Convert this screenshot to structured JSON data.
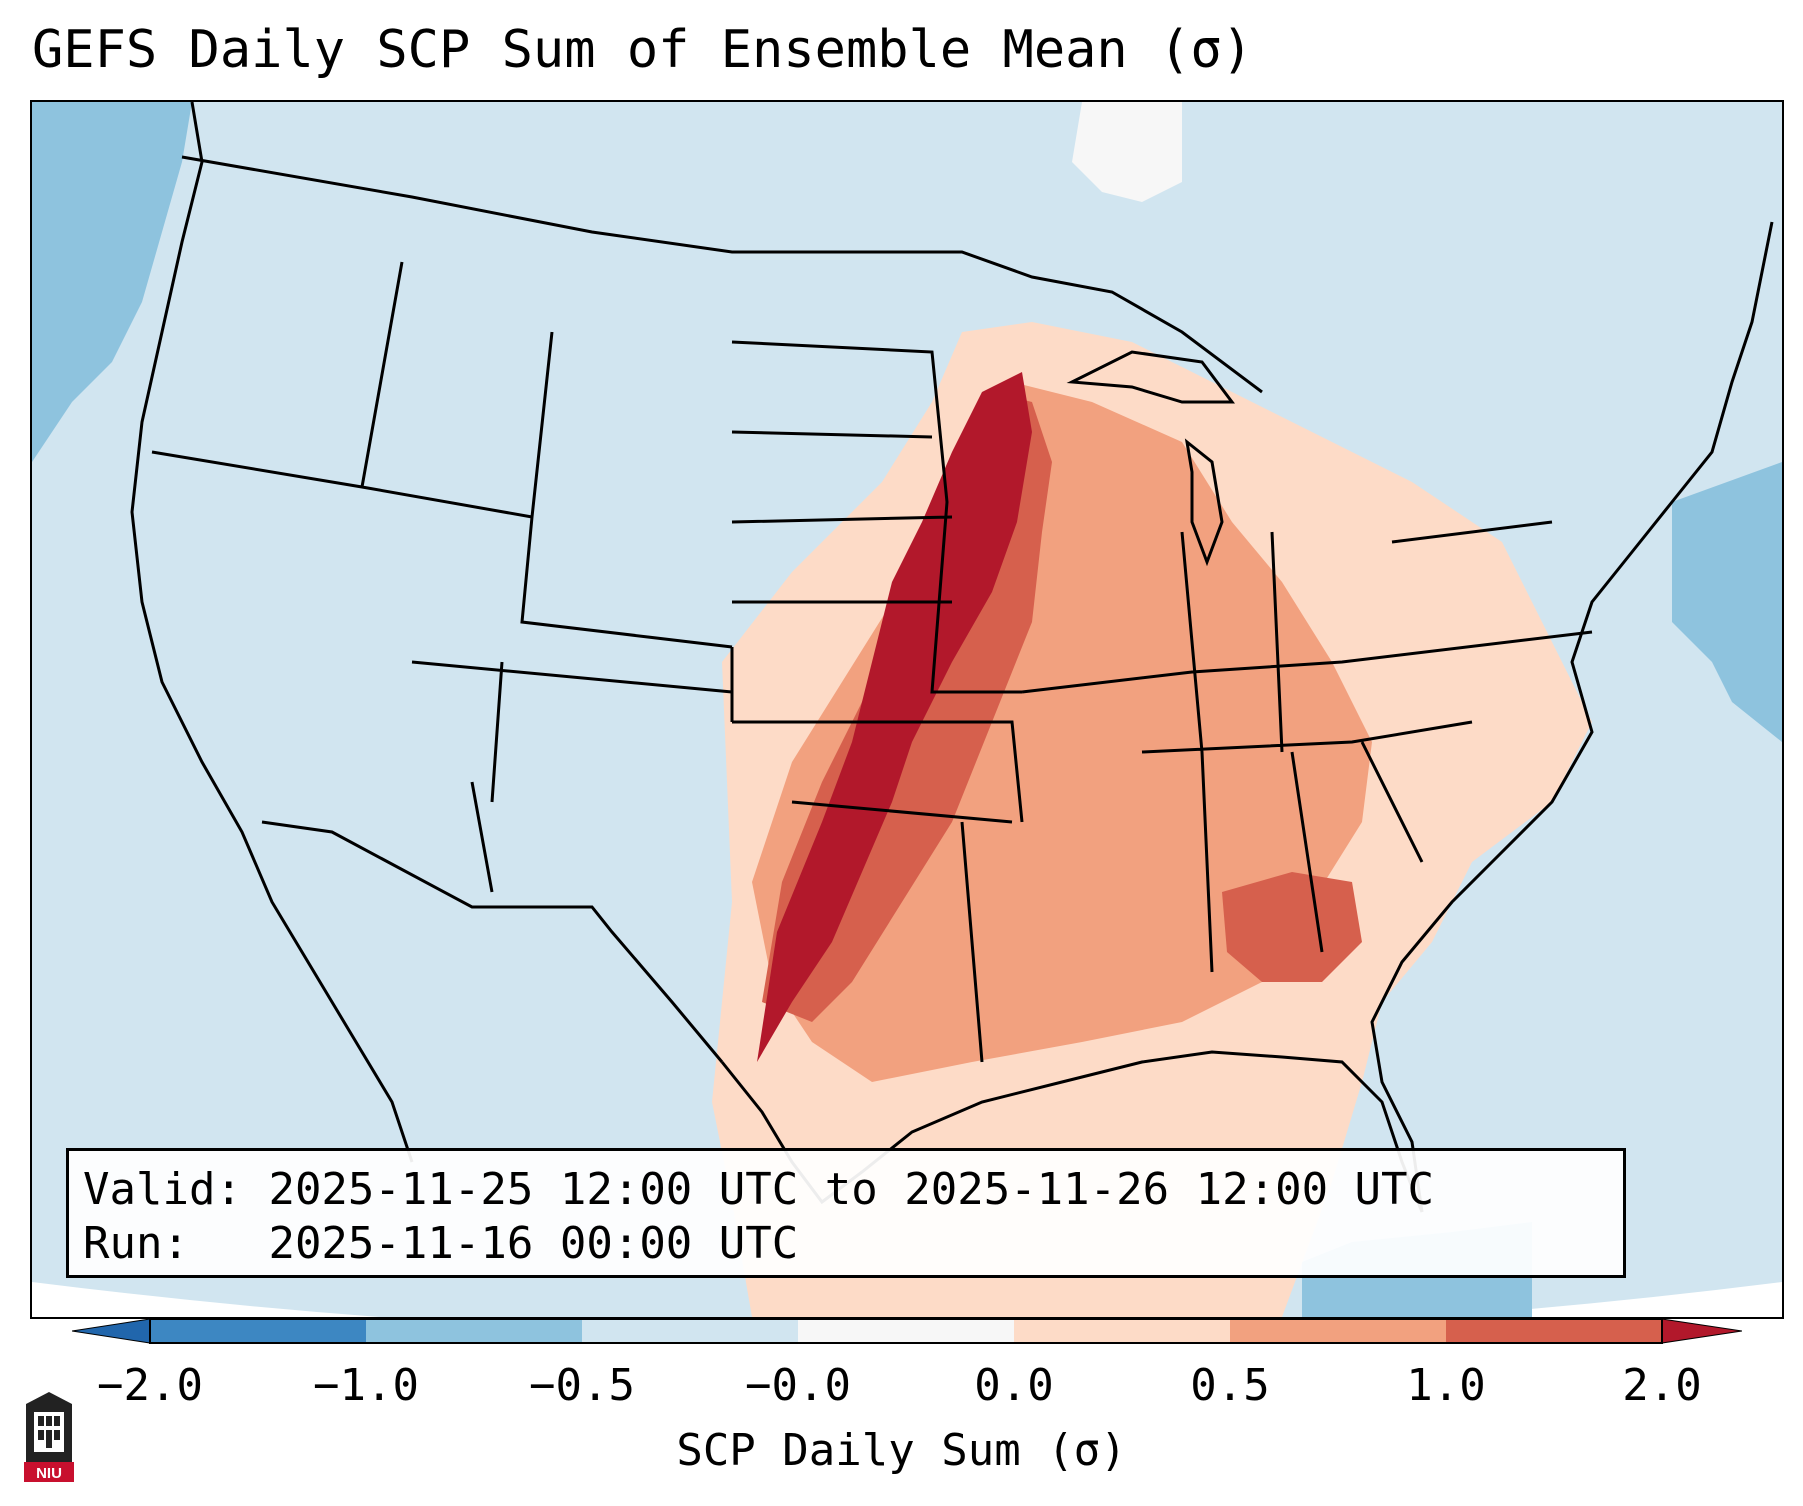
{
  "title": "GEFS Daily SCP Sum of Ensemble Mean (σ)",
  "info": {
    "valid_label": "Valid:",
    "valid_value": "2025-11-25 12:00 UTC to 2025-11-26 12:00 UTC",
    "run_label": "Run:",
    "run_value": "2025-11-16 00:00 UTC"
  },
  "colorbar": {
    "label": "SCP Daily Sum (σ)",
    "ticks": [
      "−2.0",
      "−1.0",
      "−0.5",
      "−0.0",
      "0.0",
      "0.5",
      "1.0",
      "2.0"
    ],
    "colors": [
      "#3d87c2",
      "#8ec3de",
      "#d1e5f0",
      "#f7f7f7",
      "#fddbc7",
      "#f2a17f",
      "#d6604d",
      "#b2182b"
    ],
    "under_color": "#2166ac",
    "over_color": "#67001f"
  },
  "map": {
    "background_color": "#d1e5f0",
    "domain": "CONUS",
    "logo_text": "NIU"
  }
}
